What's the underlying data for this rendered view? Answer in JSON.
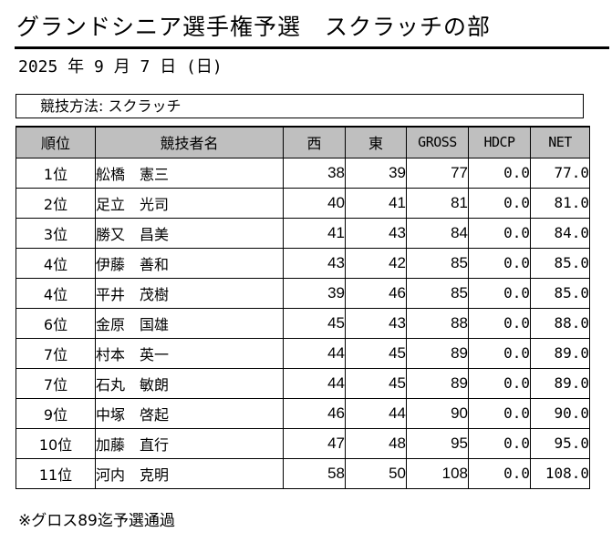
{
  "title": "グランドシニア選手権予選　スクラッチの部",
  "date": "2025 年 9 月 7 日 (日)",
  "method": "競技方法: スクラッチ",
  "columns": {
    "rank": "順位",
    "name": "競技者名",
    "west": "西",
    "east": "東",
    "gross": "GROSS",
    "hdcp": "HDCP",
    "net": "NET"
  },
  "rows": [
    {
      "rank": "1位",
      "name": "舩橋　憲三",
      "west": "38",
      "east": "39",
      "gross": "77",
      "hdcp": "0.0",
      "net": "77.0"
    },
    {
      "rank": "2位",
      "name": "足立　光司",
      "west": "40",
      "east": "41",
      "gross": "81",
      "hdcp": "0.0",
      "net": "81.0"
    },
    {
      "rank": "3位",
      "name": "勝又　昌美",
      "west": "41",
      "east": "43",
      "gross": "84",
      "hdcp": "0.0",
      "net": "84.0"
    },
    {
      "rank": "4位",
      "name": "伊藤　善和",
      "west": "43",
      "east": "42",
      "gross": "85",
      "hdcp": "0.0",
      "net": "85.0"
    },
    {
      "rank": "4位",
      "name": "平井　茂樹",
      "west": "39",
      "east": "46",
      "gross": "85",
      "hdcp": "0.0",
      "net": "85.0"
    },
    {
      "rank": "6位",
      "name": "金原　国雄",
      "west": "45",
      "east": "43",
      "gross": "88",
      "hdcp": "0.0",
      "net": "88.0"
    },
    {
      "rank": "7位",
      "name": "村本　英一",
      "west": "44",
      "east": "45",
      "gross": "89",
      "hdcp": "0.0",
      "net": "89.0"
    },
    {
      "rank": "7位",
      "name": "石丸　敏朗",
      "west": "44",
      "east": "45",
      "gross": "89",
      "hdcp": "0.0",
      "net": "89.0"
    },
    {
      "rank": "9位",
      "name": "中塚　啓起",
      "west": "46",
      "east": "44",
      "gross": "90",
      "hdcp": "0.0",
      "net": "90.0"
    },
    {
      "rank": "10位",
      "name": "加藤　直行",
      "west": "47",
      "east": "48",
      "gross": "95",
      "hdcp": "0.0",
      "net": "95.0"
    },
    {
      "rank": "11位",
      "name": "河内　克明",
      "west": "58",
      "east": "50",
      "gross": "108",
      "hdcp": "0.0",
      "net": "108.0"
    }
  ],
  "footnote": "※グロス89迄予選通過"
}
